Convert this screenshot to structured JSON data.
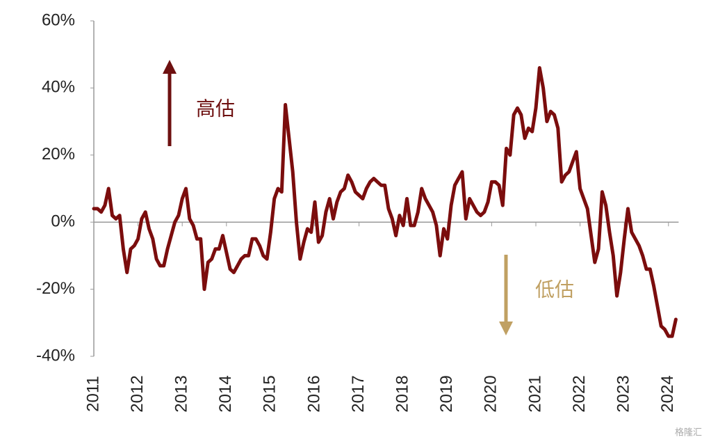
{
  "chart_data": {
    "type": "line",
    "color": "#7b0d0d",
    "categories": [
      "2011",
      null,
      null,
      null,
      null,
      null,
      null,
      null,
      null,
      null,
      null,
      null,
      "2012",
      null,
      null,
      null,
      null,
      null,
      null,
      null,
      null,
      null,
      null,
      null,
      "2013",
      null,
      null,
      null,
      null,
      null,
      null,
      null,
      null,
      null,
      null,
      null,
      "2014",
      null,
      null,
      null,
      null,
      null,
      null,
      null,
      null,
      null,
      null,
      null,
      "2015",
      null,
      null,
      null,
      null,
      null,
      null,
      null,
      null,
      null,
      null,
      null,
      "2016",
      null,
      null,
      null,
      null,
      null,
      null,
      null,
      null,
      null,
      null,
      null,
      "2017",
      null,
      null,
      null,
      null,
      null,
      null,
      null,
      null,
      null,
      null,
      null,
      "2018",
      null,
      null,
      null,
      null,
      null,
      null,
      null,
      null,
      null,
      null,
      null,
      "2019",
      null,
      null,
      null,
      null,
      null,
      null,
      null,
      null,
      null,
      null,
      null,
      "2020",
      null,
      null,
      null,
      null,
      null,
      null,
      null,
      null,
      null,
      null,
      null,
      "2021",
      null,
      null,
      null,
      null,
      null,
      null,
      null,
      null,
      null,
      null,
      null,
      "2022",
      null,
      null,
      null,
      null,
      null,
      null,
      null,
      null,
      null,
      null,
      null,
      "2023",
      null,
      null,
      null,
      null,
      null,
      null,
      null,
      null,
      null,
      null,
      null,
      "2024",
      null,
      null
    ],
    "values": [
      4,
      4,
      3,
      5,
      10,
      2,
      1,
      2,
      -8,
      -15,
      -8,
      -7,
      -5,
      1,
      3,
      -2,
      -5,
      -11,
      -13,
      -13,
      -8,
      -4,
      0,
      2,
      7,
      10,
      1,
      -1,
      -5,
      -5,
      -20,
      -12,
      -11,
      -8,
      -8,
      -4,
      -9,
      -14,
      -15,
      -13,
      -11,
      -10,
      -10,
      -5,
      -5,
      -7,
      -10,
      -11,
      -3,
      7,
      10,
      9,
      35,
      25,
      15,
      0,
      -11,
      -6,
      -2,
      -3,
      6,
      -6,
      -4,
      3,
      7,
      1,
      6,
      9,
      10,
      14,
      12,
      9,
      8,
      7,
      10,
      12,
      13,
      12,
      11,
      11,
      4,
      1,
      -4,
      2,
      -1,
      7,
      -1,
      -1,
      3,
      10,
      7,
      5,
      3,
      -1,
      -10,
      -2,
      -5,
      5,
      11,
      13,
      15,
      1,
      7,
      5,
      3,
      2,
      3,
      6,
      12,
      12,
      11,
      5,
      22,
      20,
      32,
      34,
      32,
      25,
      28,
      27,
      34,
      46,
      40,
      30,
      33,
      32,
      28,
      12,
      14,
      15,
      18,
      21,
      10,
      7,
      4,
      -4,
      -12,
      -8,
      9,
      5,
      -3,
      -10,
      -22,
      -15,
      -5,
      4,
      -3,
      -5,
      -7,
      -10,
      -14,
      -14,
      -19,
      -25,
      -31,
      -32,
      -34,
      -34,
      -29
    ],
    "ylim": [
      -40,
      60
    ],
    "yticks": [
      {
        "value": -40,
        "label": "-40%"
      },
      {
        "value": -20,
        "label": "-20%"
      },
      {
        "value": 0,
        "label": "0%"
      },
      {
        "value": 20,
        "label": "20%"
      },
      {
        "value": 40,
        "label": "40%"
      },
      {
        "value": 60,
        "label": "60%"
      }
    ],
    "annotations": {
      "high": "高估",
      "low": "低估",
      "watermark": "格隆汇"
    }
  }
}
